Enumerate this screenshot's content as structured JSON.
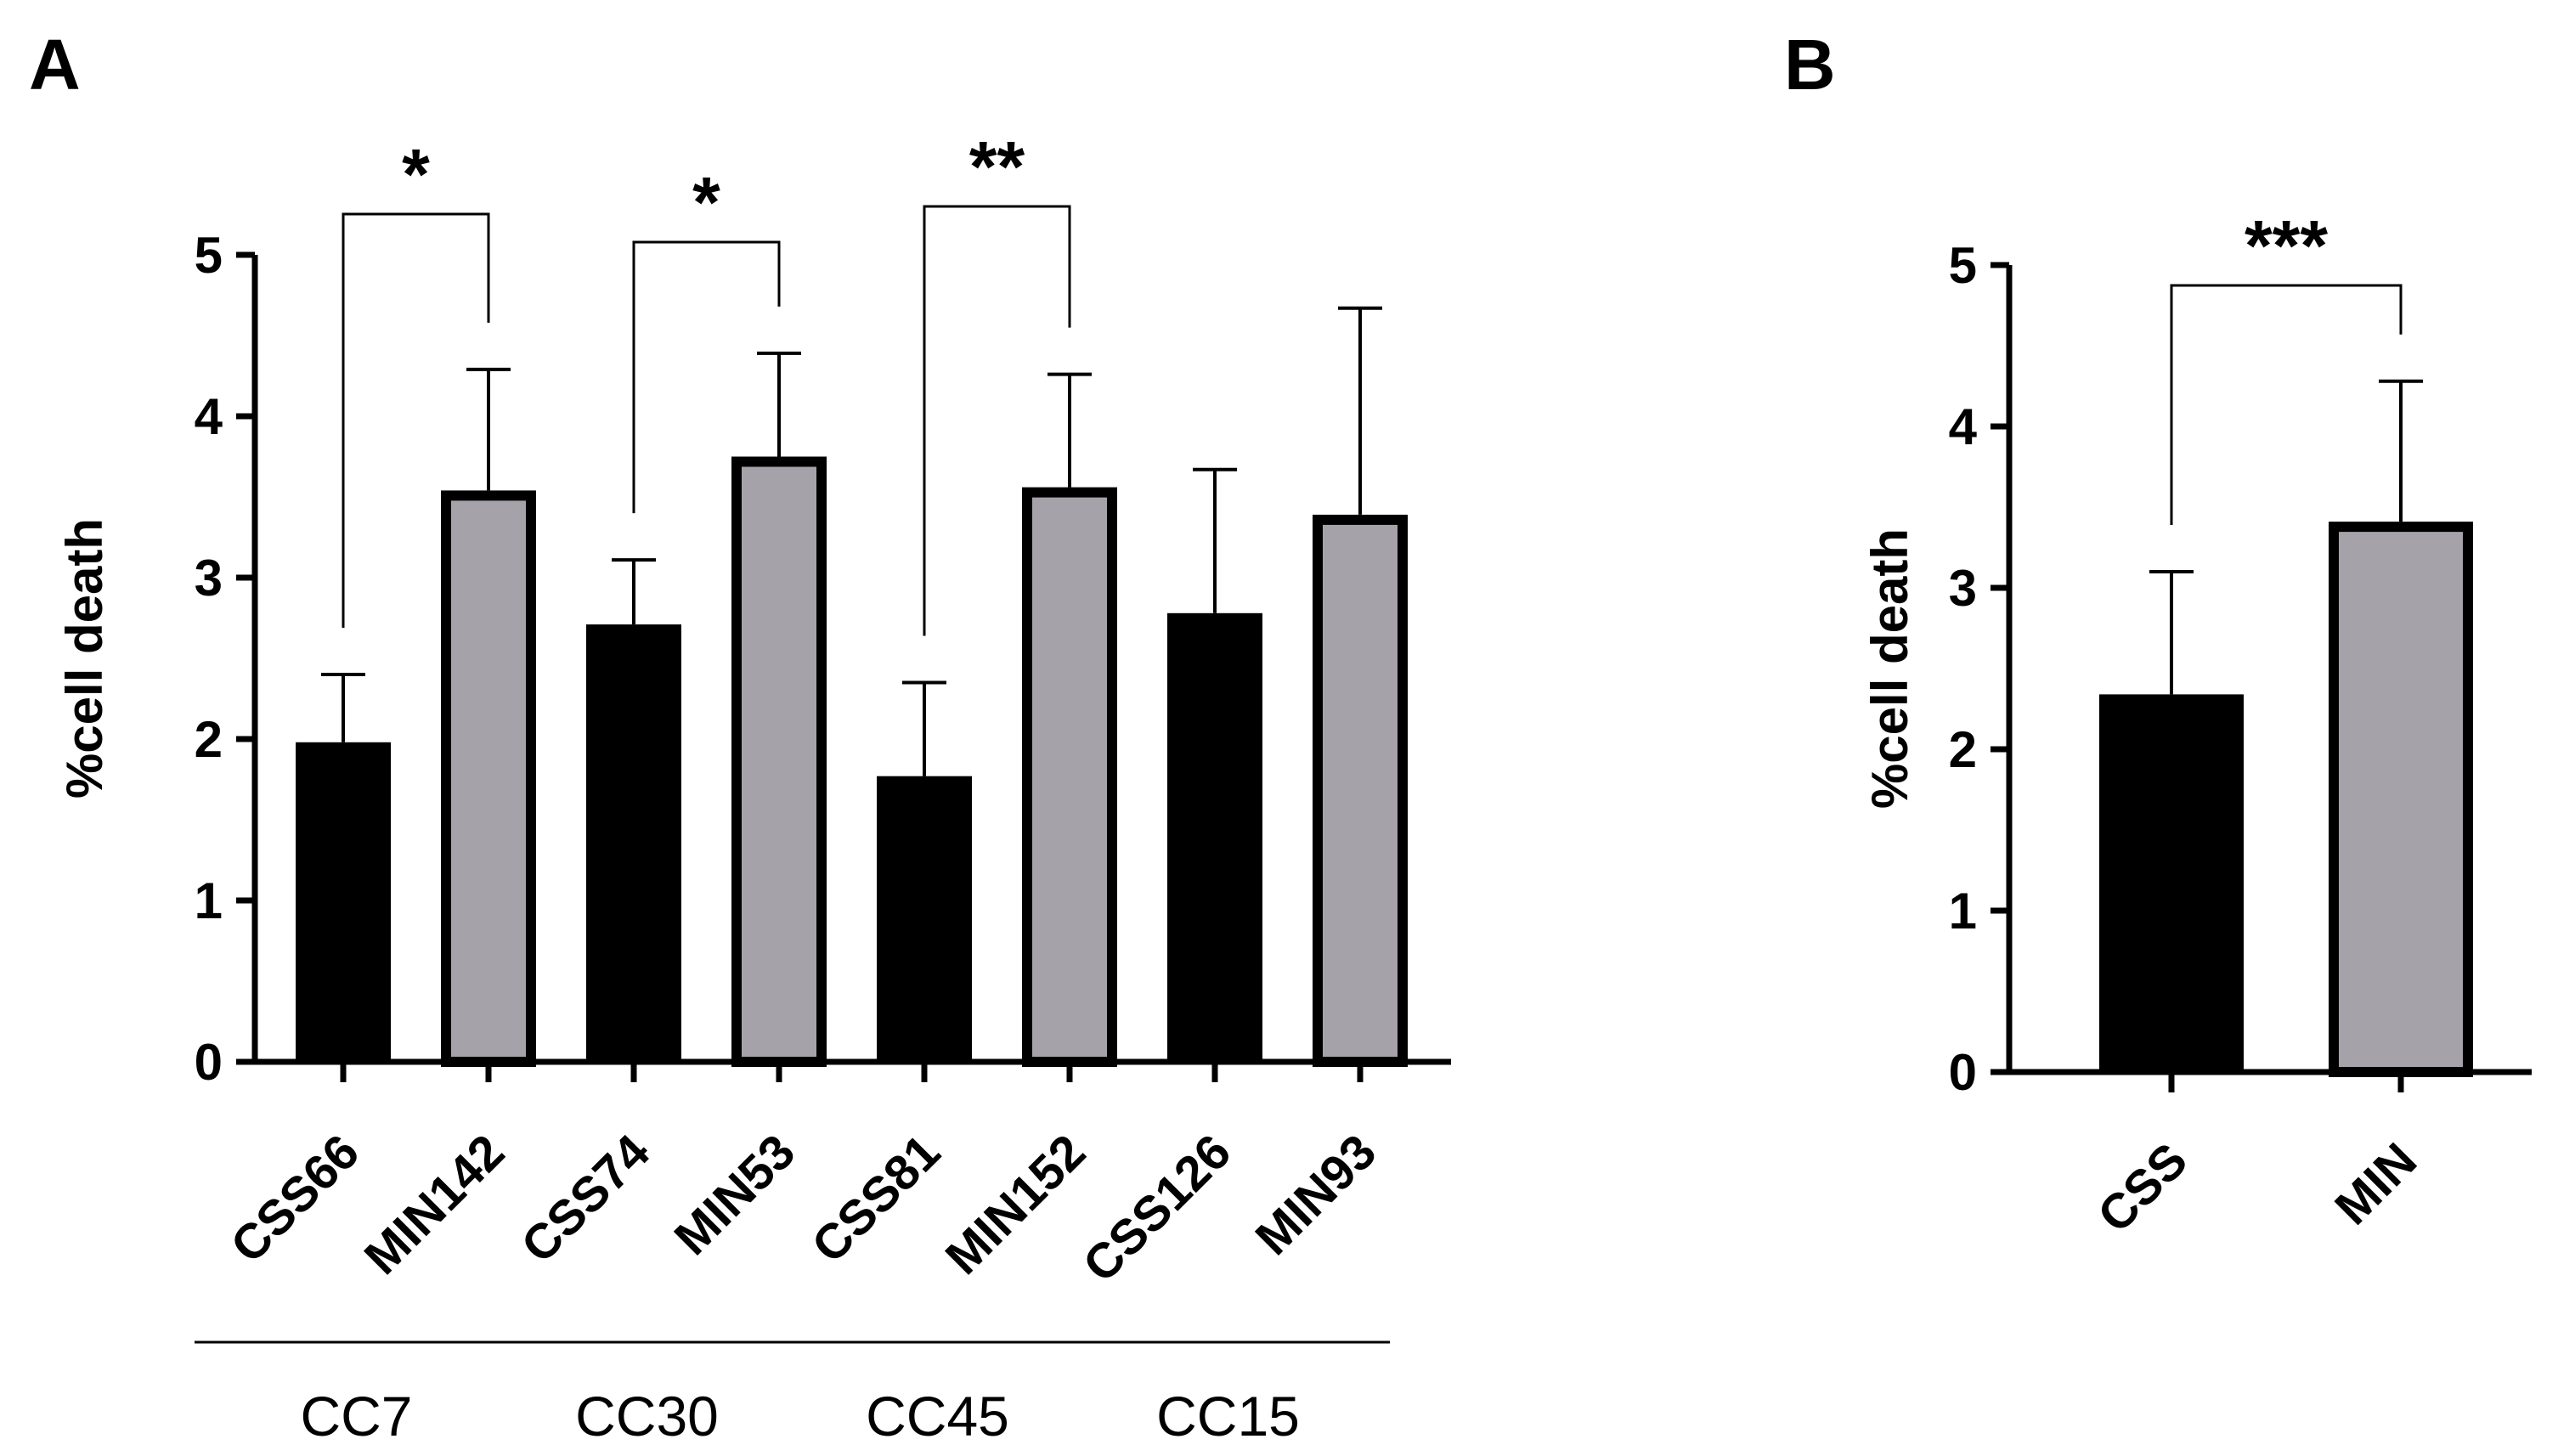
{
  "chart_data": [
    {
      "type": "bar",
      "panel": "A",
      "ylabel": "%cell death",
      "xlabel": "",
      "ylim": [
        0,
        5
      ],
      "yticks": [
        0,
        1,
        2,
        3,
        4,
        5
      ],
      "categories": [
        "CSS66",
        "MIN142",
        "CSS74",
        "MIN53",
        "CSS81",
        "MIN152",
        "CSS126",
        "MIN93"
      ],
      "values": [
        1.98,
        3.54,
        2.71,
        3.75,
        1.77,
        3.56,
        2.78,
        3.39
      ],
      "errors": [
        0.42,
        0.75,
        0.4,
        0.64,
        0.58,
        0.7,
        0.89,
        1.28
      ],
      "fills": [
        "#000000",
        "#a5a3a9",
        "#000000",
        "#a5a3a9",
        "#000000",
        "#a5a3a9",
        "#000000",
        "#a5a3a9"
      ],
      "groups": [
        {
          "label": "CC7",
          "members": [
            0,
            1
          ]
        },
        {
          "label": "CC30",
          "members": [
            2,
            3
          ]
        },
        {
          "label": "CC45",
          "members": [
            4,
            5
          ]
        },
        {
          "label": "CC15",
          "members": [
            6,
            7
          ]
        }
      ],
      "significance": [
        {
          "from": 0,
          "to": 1,
          "label": "*"
        },
        {
          "from": 2,
          "to": 3,
          "label": "*"
        },
        {
          "from": 4,
          "to": 5,
          "label": "**"
        }
      ]
    },
    {
      "type": "bar",
      "panel": "B",
      "ylabel": "%cell death",
      "xlabel": "",
      "ylim": [
        0,
        5
      ],
      "yticks": [
        0,
        1,
        2,
        3,
        4,
        5
      ],
      "categories": [
        "CSS",
        "MIN"
      ],
      "values": [
        2.34,
        3.41
      ],
      "errors": [
        0.76,
        0.87
      ],
      "fills": [
        "#000000",
        "#a5a3a9"
      ],
      "significance": [
        {
          "from": 0,
          "to": 1,
          "label": "***"
        }
      ]
    }
  ]
}
